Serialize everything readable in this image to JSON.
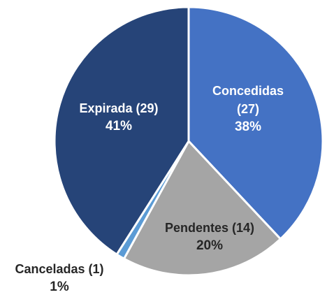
{
  "chart_data": {
    "type": "pie",
    "categories": [
      "Concedidas (27)",
      "Pendentes (14)",
      "Canceladas (1)",
      "Expirada (29)"
    ],
    "values": [
      38,
      20,
      1,
      41
    ],
    "value_labels": [
      "38%",
      "20%",
      "1%",
      "41%"
    ],
    "colors": [
      "#4472c4",
      "#a5a5a5",
      "#5b9bd5",
      "#264478"
    ]
  }
}
